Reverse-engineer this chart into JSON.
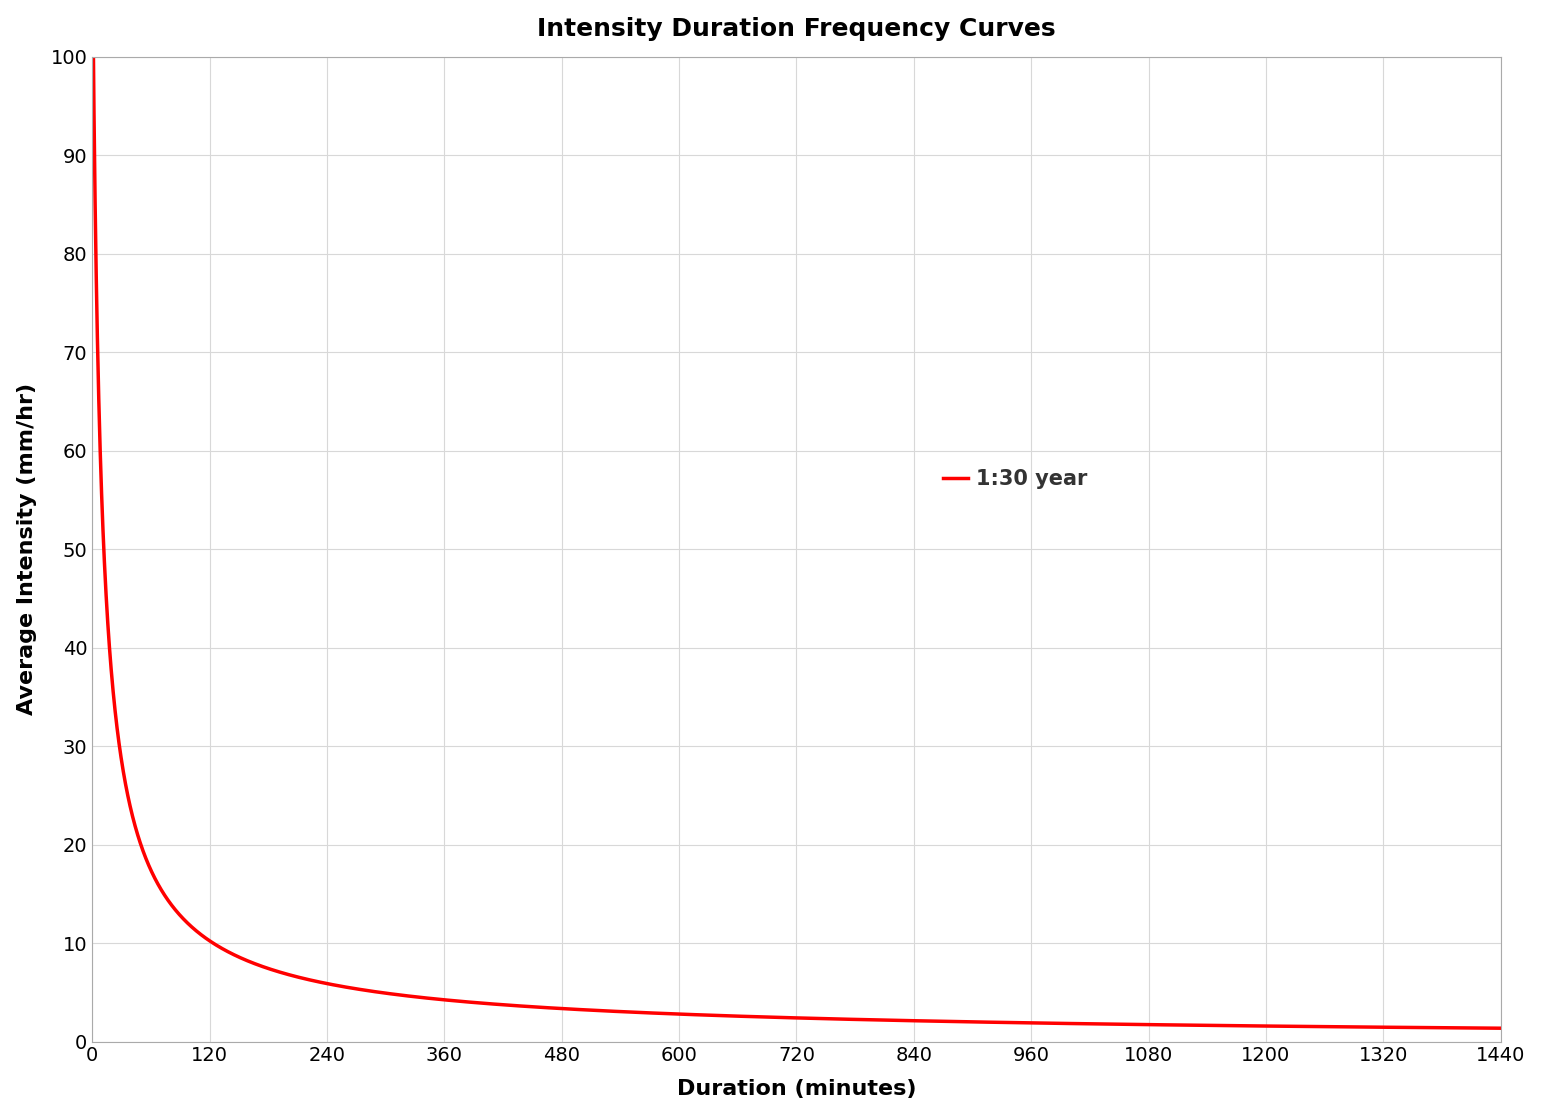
{
  "title": "Intensity Duration Frequency Curves",
  "xlabel": "Duration (minutes)",
  "ylabel": "Average Intensity (mm/hr)",
  "xlim": [
    0,
    1440
  ],
  "ylim": [
    0,
    100
  ],
  "xticks": [
    0,
    120,
    240,
    360,
    480,
    600,
    720,
    840,
    960,
    1080,
    1200,
    1320,
    1440
  ],
  "yticks": [
    0,
    10,
    20,
    30,
    40,
    50,
    60,
    70,
    80,
    90,
    100
  ],
  "curve_color": "#FF0000",
  "curve_label": "1:30 year",
  "curve_linewidth": 2.5,
  "legend_fontsize": 15,
  "title_fontsize": 18,
  "axis_label_fontsize": 16,
  "tick_fontsize": 14,
  "background_color": "#FFFFFF",
  "grid_color": "#D8D8D8",
  "idf_a": 570.0,
  "idf_b": 7.0,
  "idf_c": 0.83
}
